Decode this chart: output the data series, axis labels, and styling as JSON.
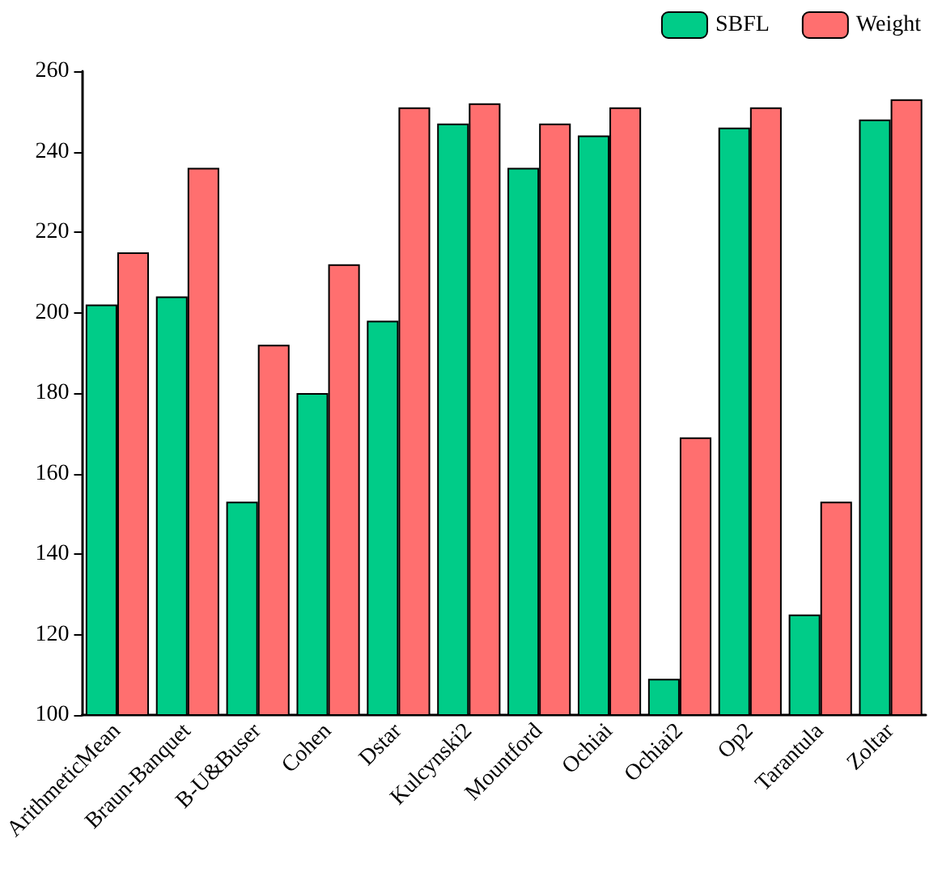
{
  "chart_data": {
    "type": "bar",
    "categories": [
      "ArithmeticMean",
      "Braun-Banquet",
      "B-U&Buser",
      "Cohen",
      "Dstar",
      "Kulcynski2",
      "Mountford",
      "Ochiai",
      "Ochiai2",
      "Op2",
      "Tarantula",
      "Zoltar"
    ],
    "series": [
      {
        "name": "SBFL",
        "color": "#00cc88",
        "values": [
          202,
          204,
          153,
          180,
          198,
          247,
          236,
          244,
          109,
          246,
          125,
          248
        ]
      },
      {
        "name": "Weight",
        "color": "#ff6f6f",
        "values": [
          215,
          236,
          192,
          212,
          251,
          252,
          247,
          251,
          169,
          251,
          153,
          253
        ]
      }
    ],
    "ylim": [
      100,
      260
    ],
    "yticks": [
      100,
      120,
      140,
      160,
      180,
      200,
      220,
      240,
      260
    ],
    "grid": false,
    "legend": "top right"
  }
}
